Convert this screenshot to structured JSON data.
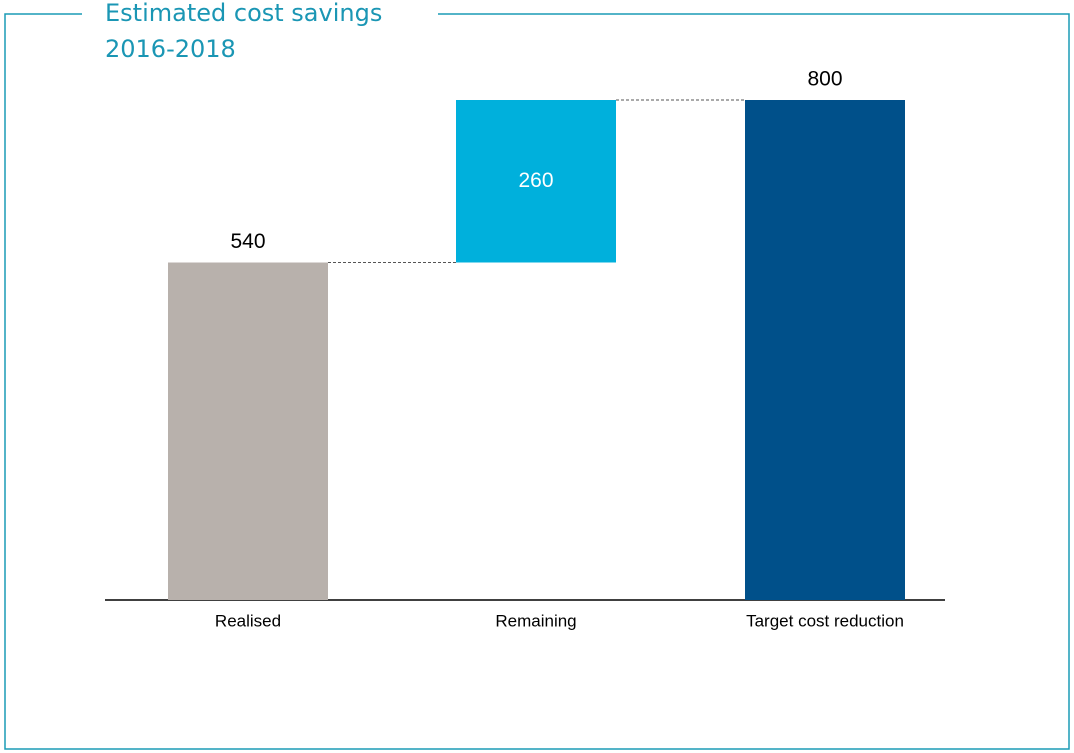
{
  "chart_data": {
    "type": "waterfall",
    "title": [
      "Estimated cost savings",
      "2016-2018"
    ],
    "categories": [
      "Realised",
      "Remaining",
      "Target cost reduction"
    ],
    "values": [
      540,
      260,
      800
    ],
    "measure": [
      "absolute",
      "relative",
      "total"
    ],
    "colors": [
      "#b8b1ac",
      "#00b0dc",
      "#00508a"
    ],
    "ylim": [
      0,
      800
    ]
  }
}
